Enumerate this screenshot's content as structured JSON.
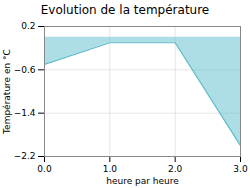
{
  "chart_data": {
    "type": "area",
    "title": "Evolution de la température",
    "xlabel": "heure par heure",
    "ylabel": "Température en °C",
    "x": [
      0,
      1,
      2,
      3
    ],
    "values": [
      -0.5,
      -0.1,
      -0.1,
      -2.0
    ],
    "color": "#5bbccc",
    "xlim": [
      0,
      3
    ],
    "ylim": [
      -2.2,
      0.2
    ],
    "xticks": [
      0,
      1,
      2,
      3
    ],
    "yticks": [
      0.2,
      -0.6,
      -1.4,
      -2.2
    ],
    "grid": true
  }
}
